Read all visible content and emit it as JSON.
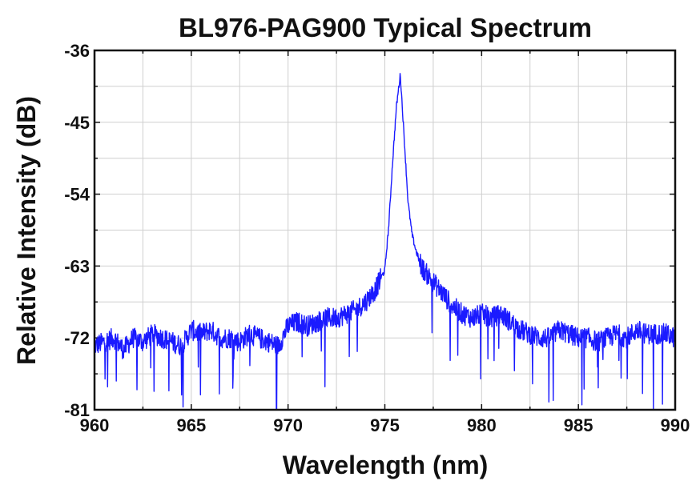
{
  "chart_data": {
    "type": "line",
    "title": "BL976-PAG900 Typical Spectrum",
    "xlabel": "Wavelength (nm)",
    "ylabel": "Relative Intensity (dB)",
    "xlim": [
      960,
      990
    ],
    "ylim": [
      -81,
      -36
    ],
    "x_ticks": [
      960,
      965,
      970,
      975,
      980,
      985,
      990
    ],
    "y_ticks": [
      -36,
      -45,
      -54,
      -63,
      -72,
      -81
    ],
    "x_tick_labels": [
      "960",
      "965",
      "970",
      "975",
      "980",
      "985",
      "990"
    ],
    "y_tick_labels": [
      "-36",
      "-45",
      "-54",
      "-63",
      "-72",
      "-81"
    ],
    "grid": true,
    "legend": "none",
    "line_color": "#1a1aff",
    "series": [
      {
        "x": [
          960.0,
          960.5,
          961.0,
          961.5,
          962.0,
          962.5,
          963.0,
          963.5,
          964.0,
          964.5,
          965.0,
          965.5,
          966.0,
          966.5,
          967.0,
          967.5,
          968.0,
          968.5,
          969.0,
          969.5,
          970.0,
          970.5,
          971.0,
          971.5,
          972.0,
          972.5,
          973.0,
          973.5,
          974.0,
          974.5,
          975.0,
          975.2,
          975.4,
          975.6,
          975.8,
          976.0,
          976.2,
          976.4,
          976.6,
          976.8,
          977.0,
          977.5,
          978.0,
          978.5,
          979.0,
          979.5,
          980.0,
          980.5,
          981.0,
          981.5,
          982.0,
          982.5,
          983.0,
          983.5,
          984.0,
          984.5,
          985.0,
          985.5,
          986.0,
          986.5,
          987.0,
          987.5,
          988.0,
          988.5,
          989.0,
          989.5,
          990.0
        ],
        "y": [
          -73.0,
          -72.5,
          -72.0,
          -73.5,
          -72.0,
          -72.5,
          -71.5,
          -72.0,
          -72.5,
          -73.0,
          -71.0,
          -71.5,
          -71.0,
          -72.0,
          -72.0,
          -72.5,
          -71.5,
          -72.0,
          -72.5,
          -73.0,
          -70.5,
          -70.0,
          -70.5,
          -70.0,
          -69.5,
          -69.5,
          -69.0,
          -68.5,
          -67.5,
          -66.0,
          -63.5,
          -58.0,
          -50.0,
          -43.0,
          -39.0,
          -47.0,
          -55.0,
          -59.0,
          -61.0,
          -62.5,
          -63.5,
          -65.0,
          -66.5,
          -68.0,
          -69.0,
          -69.5,
          -69.0,
          -69.5,
          -69.0,
          -70.0,
          -71.0,
          -71.5,
          -72.0,
          -72.0,
          -71.0,
          -71.5,
          -72.0,
          -72.0,
          -72.5,
          -72.0,
          -71.5,
          -72.0,
          -71.0,
          -71.5,
          -71.5,
          -71.5,
          -72.0
        ]
      }
    ]
  }
}
